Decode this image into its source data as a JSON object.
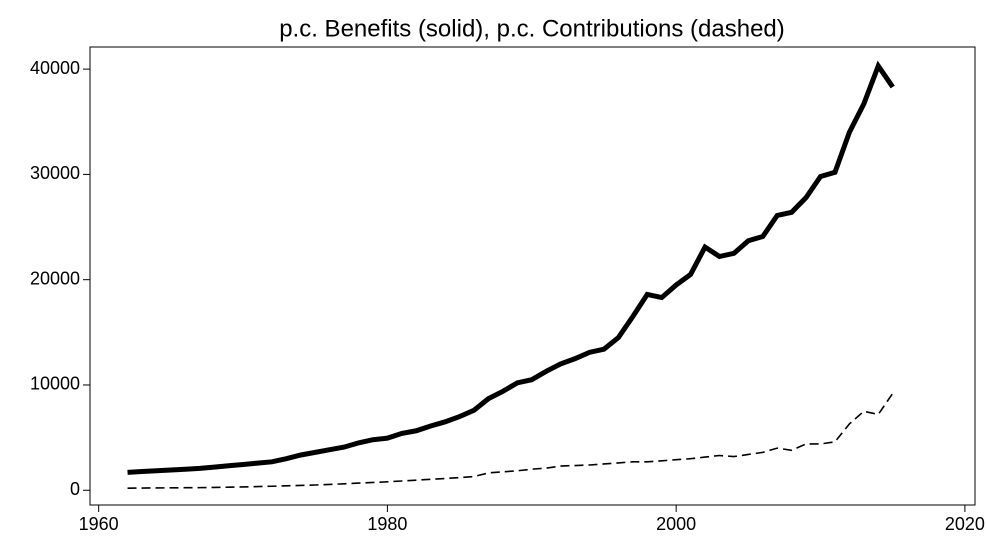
{
  "chart_data": {
    "type": "line",
    "title": "p.c. Benefits (solid), p.c. Contributions (dashed)",
    "x": [
      1962,
      1963,
      1964,
      1965,
      1966,
      1967,
      1968,
      1969,
      1970,
      1971,
      1972,
      1973,
      1974,
      1975,
      1976,
      1977,
      1978,
      1979,
      1980,
      1981,
      1982,
      1983,
      1984,
      1985,
      1986,
      1987,
      1988,
      1989,
      1990,
      1991,
      1992,
      1993,
      1994,
      1995,
      1996,
      1997,
      1998,
      1999,
      2000,
      2001,
      2002,
      2003,
      2004,
      2005,
      2006,
      2007,
      2008,
      2009,
      2010,
      2011,
      2012,
      2013,
      2014,
      2015
    ],
    "series": [
      {
        "color": "#000000",
        "line_style": "solid",
        "values": [
          1700,
          1780,
          1850,
          1920,
          2000,
          2080,
          2200,
          2330,
          2450,
          2580,
          2700,
          3000,
          3350,
          3600,
          3850,
          4100,
          4500,
          4800,
          4950,
          5400,
          5650,
          6100,
          6500,
          7000,
          7600,
          8700,
          9400,
          10200,
          10500,
          11300,
          12000,
          12500,
          13100,
          13400,
          14500,
          16500,
          18600,
          18300,
          19500,
          20500,
          23100,
          22200,
          22500,
          23700,
          24100,
          26100,
          26400,
          27800,
          29800,
          30200,
          34000,
          36700,
          40300,
          38300
        ]
      },
      {
        "color": "#000000",
        "line_style": "dashed",
        "values": [
          200,
          210,
          220,
          230,
          240,
          250,
          270,
          290,
          320,
          350,
          380,
          420,
          460,
          500,
          550,
          610,
          680,
          740,
          800,
          880,
          960,
          1040,
          1120,
          1200,
          1300,
          1650,
          1750,
          1850,
          2000,
          2100,
          2300,
          2350,
          2400,
          2500,
          2600,
          2700,
          2700,
          2800,
          2900,
          3000,
          3150,
          3300,
          3200,
          3400,
          3600,
          4000,
          3800,
          4400,
          4400,
          4600,
          6300,
          7500,
          7200,
          9200
        ]
      }
    ],
    "xlim": [
      1959.4,
      2020.7
    ],
    "xticks": [
      1960,
      1980,
      2000,
      2020
    ],
    "ylim": [
      -1400,
      42100
    ],
    "yticks": [
      0,
      10000,
      20000,
      30000,
      40000
    ]
  }
}
